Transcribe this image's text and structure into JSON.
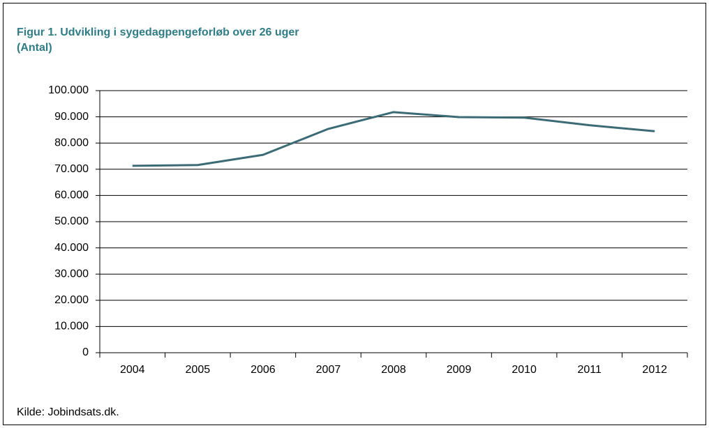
{
  "chart_data": {
    "type": "line",
    "title": "Figur 1. Udvikling i sygedagpengeforløb over 26 uger",
    "subtitle": "(Antal)",
    "source": "Kilde:  Jobindsats.dk.",
    "categories": [
      "2004",
      "2005",
      "2006",
      "2007",
      "2008",
      "2009",
      "2010",
      "2011",
      "2012"
    ],
    "series": [
      {
        "name": "Sygedagpengeforløb over 26 uger",
        "color": "#3b6b74",
        "values": [
          71300,
          71600,
          75500,
          85400,
          91800,
          89900,
          89700,
          86800,
          84500
        ]
      }
    ],
    "ylim": [
      0,
      100000
    ],
    "yticks": [
      0,
      {
        "value": 10000,
        "label": "10.000"
      },
      {
        "value": 20000,
        "label": "20.000"
      },
      {
        "value": 30000,
        "label": "30.000"
      },
      {
        "value": 40000,
        "label": "40.000"
      },
      {
        "value": 50000,
        "label": "50.000"
      },
      {
        "value": 60000,
        "label": "60.000"
      },
      {
        "value": 70000,
        "label": "70.000"
      },
      {
        "value": 80000,
        "label": "80.000"
      },
      {
        "value": 90000,
        "label": "90.000"
      },
      {
        "value": 100000,
        "label": "100.000"
      }
    ],
    "grid": true
  }
}
